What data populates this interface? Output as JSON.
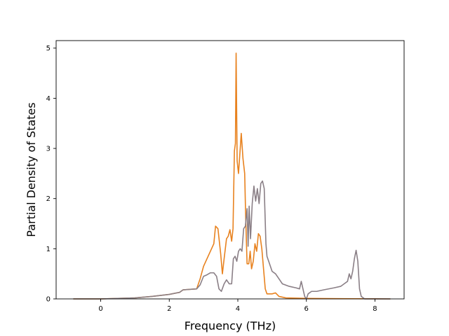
{
  "chart_data": {
    "type": "line",
    "xlabel": "Frequency (THz)",
    "ylabel": "Partial Density of States",
    "xlim": [
      -1.3,
      8.85
    ],
    "ylim": [
      0,
      5.15
    ],
    "x_ticks": [
      0,
      2,
      4,
      6,
      8
    ],
    "y_ticks": [
      0,
      1,
      2,
      3,
      4,
      5
    ],
    "grid": false,
    "legend": "none",
    "series": [
      {
        "color": "#e8821f",
        "points": [
          [
            -0.8,
            0.0
          ],
          [
            0.0,
            0.0
          ],
          [
            0.5,
            0.01
          ],
          [
            1.0,
            0.02
          ],
          [
            1.5,
            0.05
          ],
          [
            2.0,
            0.09
          ],
          [
            2.3,
            0.13
          ],
          [
            2.4,
            0.18
          ],
          [
            2.8,
            0.2
          ],
          [
            2.9,
            0.4
          ],
          [
            3.0,
            0.65
          ],
          [
            3.1,
            0.8
          ],
          [
            3.2,
            0.95
          ],
          [
            3.3,
            1.1
          ],
          [
            3.35,
            1.45
          ],
          [
            3.42,
            1.4
          ],
          [
            3.5,
            0.9
          ],
          [
            3.55,
            0.5
          ],
          [
            3.6,
            0.8
          ],
          [
            3.67,
            1.2
          ],
          [
            3.72,
            1.25
          ],
          [
            3.77,
            1.38
          ],
          [
            3.82,
            1.15
          ],
          [
            3.86,
            1.4
          ],
          [
            3.9,
            2.95
          ],
          [
            3.93,
            3.1
          ],
          [
            3.95,
            4.9
          ],
          [
            3.98,
            2.75
          ],
          [
            4.02,
            2.5
          ],
          [
            4.05,
            2.8
          ],
          [
            4.1,
            3.3
          ],
          [
            4.15,
            2.8
          ],
          [
            4.2,
            2.5
          ],
          [
            4.23,
            1.6
          ],
          [
            4.27,
            0.7
          ],
          [
            4.32,
            0.7
          ],
          [
            4.36,
            0.95
          ],
          [
            4.4,
            0.6
          ],
          [
            4.45,
            0.75
          ],
          [
            4.5,
            1.1
          ],
          [
            4.55,
            0.95
          ],
          [
            4.6,
            1.3
          ],
          [
            4.65,
            1.25
          ],
          [
            4.7,
            1.0
          ],
          [
            4.75,
            0.6
          ],
          [
            4.8,
            0.2
          ],
          [
            4.85,
            0.1
          ],
          [
            5.0,
            0.1
          ],
          [
            5.1,
            0.12
          ],
          [
            5.2,
            0.05
          ],
          [
            5.4,
            0.02
          ],
          [
            6.0,
            0.01
          ],
          [
            7.0,
            0.005
          ],
          [
            8.0,
            0.002
          ],
          [
            8.45,
            0.0
          ]
        ]
      },
      {
        "color": "#8a7f86",
        "points": [
          [
            -0.8,
            0.0
          ],
          [
            0.0,
            0.0
          ],
          [
            0.5,
            0.01
          ],
          [
            1.0,
            0.02
          ],
          [
            1.5,
            0.05
          ],
          [
            2.0,
            0.09
          ],
          [
            2.3,
            0.13
          ],
          [
            2.4,
            0.18
          ],
          [
            2.8,
            0.2
          ],
          [
            2.9,
            0.28
          ],
          [
            3.0,
            0.45
          ],
          [
            3.1,
            0.48
          ],
          [
            3.2,
            0.52
          ],
          [
            3.3,
            0.52
          ],
          [
            3.38,
            0.45
          ],
          [
            3.45,
            0.2
          ],
          [
            3.52,
            0.15
          ],
          [
            3.6,
            0.3
          ],
          [
            3.67,
            0.38
          ],
          [
            3.75,
            0.3
          ],
          [
            3.82,
            0.3
          ],
          [
            3.87,
            0.8
          ],
          [
            3.92,
            0.85
          ],
          [
            3.97,
            0.75
          ],
          [
            4.02,
            0.95
          ],
          [
            4.07,
            1.0
          ],
          [
            4.12,
            0.95
          ],
          [
            4.17,
            1.4
          ],
          [
            4.22,
            1.45
          ],
          [
            4.27,
            1.8
          ],
          [
            4.3,
            1.05
          ],
          [
            4.33,
            1.85
          ],
          [
            4.37,
            1.2
          ],
          [
            4.42,
            1.9
          ],
          [
            4.47,
            2.25
          ],
          [
            4.52,
            1.95
          ],
          [
            4.57,
            2.2
          ],
          [
            4.62,
            1.9
          ],
          [
            4.67,
            2.3
          ],
          [
            4.72,
            2.35
          ],
          [
            4.77,
            2.2
          ],
          [
            4.82,
            1.1
          ],
          [
            4.85,
            0.85
          ],
          [
            4.9,
            0.75
          ],
          [
            5.0,
            0.55
          ],
          [
            5.1,
            0.5
          ],
          [
            5.2,
            0.4
          ],
          [
            5.3,
            0.3
          ],
          [
            5.5,
            0.25
          ],
          [
            5.7,
            0.22
          ],
          [
            5.8,
            0.2
          ],
          [
            5.85,
            0.35
          ],
          [
            5.9,
            0.2
          ],
          [
            5.95,
            0.05
          ],
          [
            6.0,
            0.0
          ],
          [
            6.05,
            0.1
          ],
          [
            6.15,
            0.15
          ],
          [
            6.3,
            0.15
          ],
          [
            6.5,
            0.18
          ],
          [
            6.8,
            0.22
          ],
          [
            7.0,
            0.25
          ],
          [
            7.1,
            0.3
          ],
          [
            7.2,
            0.35
          ],
          [
            7.25,
            0.5
          ],
          [
            7.3,
            0.4
          ],
          [
            7.35,
            0.55
          ],
          [
            7.4,
            0.8
          ],
          [
            7.45,
            0.97
          ],
          [
            7.5,
            0.75
          ],
          [
            7.55,
            0.2
          ],
          [
            7.6,
            0.05
          ],
          [
            7.7,
            0.0
          ],
          [
            8.0,
            0.0
          ],
          [
            8.45,
            0.0
          ]
        ]
      }
    ]
  }
}
